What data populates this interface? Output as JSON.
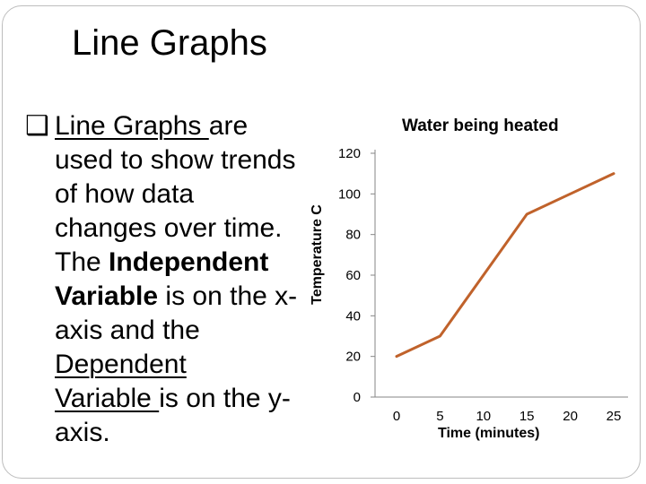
{
  "slide": {
    "title": "Line Graphs",
    "bullet_symbol": "❑",
    "bullet_lines": [
      [
        {
          "text": "Line Graphs ",
          "style": "u"
        },
        {
          "text": "are",
          "style": ""
        }
      ],
      [
        {
          "text": "used to show trends",
          "style": ""
        }
      ],
      [
        {
          "text": "of how data",
          "style": ""
        }
      ],
      [
        {
          "text": "changes over time.",
          "style": ""
        }
      ],
      [
        {
          "text": "The ",
          "style": ""
        },
        {
          "text": "Independent",
          "style": "b"
        }
      ],
      [
        {
          "text": "Variable",
          "style": "b"
        },
        {
          "text": " is on the x-",
          "style": ""
        }
      ],
      [
        {
          "text": "axis and the",
          "style": ""
        }
      ],
      [
        {
          "text": "Dependent",
          "style": "u"
        }
      ],
      [
        {
          "text": "Variable ",
          "style": "u"
        },
        {
          "text": "is on the y-",
          "style": ""
        }
      ],
      [
        {
          "text": "axis.",
          "style": ""
        }
      ]
    ]
  },
  "chart_data": {
    "type": "line",
    "title": "Water being heated",
    "xlabel": "Time (minutes)",
    "ylabel": "Temperature C",
    "x_ticks": [
      0,
      5,
      10,
      15,
      20,
      25
    ],
    "y_ticks": [
      0,
      20,
      40,
      60,
      80,
      100,
      120
    ],
    "xlim": [
      0,
      25
    ],
    "ylim": [
      0,
      120
    ],
    "grid": false,
    "legend": "none",
    "series": [
      {
        "color": "#c0622b",
        "x": [
          0,
          5,
          15,
          25
        ],
        "y": [
          20,
          30,
          90,
          110
        ]
      }
    ]
  }
}
